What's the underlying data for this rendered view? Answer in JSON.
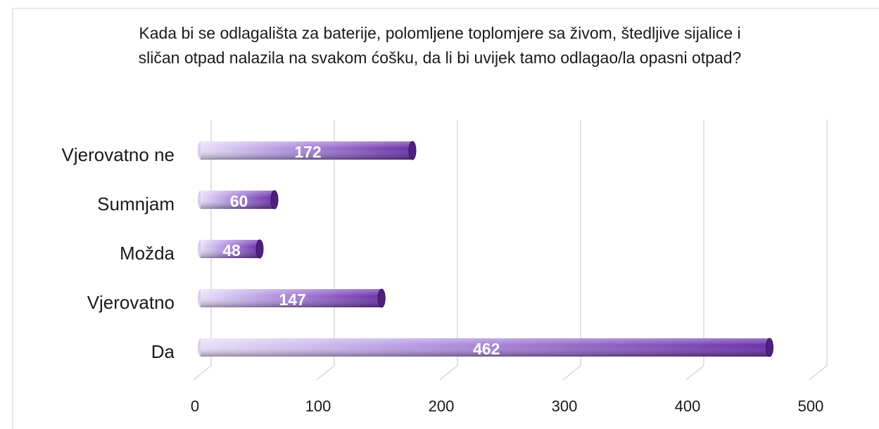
{
  "chart_data": {
    "type": "bar",
    "orientation": "horizontal",
    "title": "Kada bi se odlagališta za baterije, polomljene toplomjere sa živom, štedljive sijalice i sličan otpad nalazila na svakom ćošku, da li bi uvijek tamo odlagao/la opasni otpad?",
    "categories": [
      "Vjerovatno ne",
      "Sumnjam",
      "Možda",
      "Vjerovatno",
      "Da"
    ],
    "values": [
      172,
      60,
      48,
      147,
      462
    ],
    "color": "#7a3fb8",
    "xlim": [
      0,
      500
    ],
    "xticks": [
      0,
      100,
      200,
      300,
      400,
      500
    ],
    "grid": true
  }
}
